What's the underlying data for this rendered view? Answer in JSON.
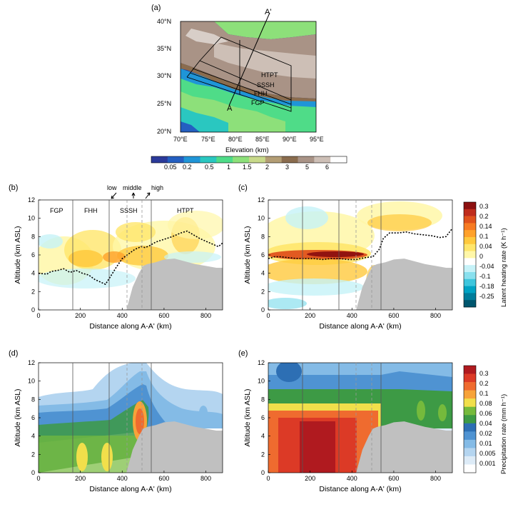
{
  "colors": {
    "gray_terrain": "#c0c0c0",
    "latent": [
      "#00566e",
      "#007d9b",
      "#00a3c4",
      "#3ec6dd",
      "#89e0ee",
      "#c6f2f8",
      "#ffffff",
      "#fff7a8",
      "#ffe66b",
      "#ffc93d",
      "#ffa12a",
      "#f77b22",
      "#e0521c",
      "#bf2c1c",
      "#8c1010"
    ],
    "precip": [
      "#ffffff",
      "#ddebf7",
      "#b4d5f0",
      "#84bbe6",
      "#4f93d2",
      "#2d6fb4",
      "#3d9a45",
      "#75ba3c",
      "#f1df4b",
      "#f7a33a",
      "#ef6b2f",
      "#dc3a26",
      "#b01a1f"
    ],
    "elev": [
      "#2b3a9a",
      "#245fc1",
      "#1f95d7",
      "#2ac7c0",
      "#4fdc88",
      "#8de07a",
      "#c8d98a",
      "#b39d74",
      "#8a6c4e",
      "#a99386",
      "#cdbfb6",
      "#ffffff"
    ]
  },
  "map_panel": {
    "label": "(a)",
    "aprime_label": "A'",
    "a_label": "A",
    "regions": [
      "HTPT",
      "SSSH",
      "FHH",
      "FGP"
    ],
    "lat_ticks": [
      "40°N",
      "35°N",
      "30°N",
      "25°N",
      "20°N"
    ],
    "lon_ticks": [
      "70°E",
      "75°E",
      "80°E",
      "85°E",
      "90°E",
      "95°E"
    ],
    "colorbar_title": "Elevation (km)",
    "colorbar_labels": [
      "0.05",
      "0.2",
      "0.5",
      "1",
      "1.5",
      "2",
      "3",
      "5",
      "6"
    ]
  },
  "cross_panels": {
    "b": {
      "label": "(b)"
    },
    "c": {
      "label": "(c)"
    },
    "d": {
      "label": "(d)"
    },
    "e": {
      "label": "(e)"
    },
    "xlabel": "Distance along A-A' (km)",
    "ylabel": "Altitude (km ASL)",
    "x_ticks": [
      "0",
      "200",
      "400",
      "600",
      "800"
    ],
    "y_ticks": [
      "0",
      "2",
      "4",
      "6",
      "8",
      "10",
      "12"
    ],
    "region_labels": [
      "FGP",
      "FHH",
      "SSSH",
      "HTPT"
    ],
    "elev_arrows": [
      "low",
      "middle",
      "high"
    ]
  },
  "colorbars": {
    "latent": {
      "title": "Latent heating rate  (K h⁻¹)",
      "labels": [
        "0.3",
        "0.2",
        "0.14",
        "0.1",
        "0.04",
        "0",
        "-0.04",
        "-0.1",
        "-0.18",
        "-0.25"
      ]
    },
    "precip": {
      "title": "Precipitation rate  (mm h⁻¹)",
      "labels": [
        "0.3",
        "0.2",
        "0.1",
        "0.08",
        "0.06",
        "0.04",
        "0.02",
        "0.01",
        "0.005",
        "0.001"
      ]
    }
  },
  "chart_data": [
    {
      "panel": "(b)",
      "type": "line",
      "xlabel": "Distance along A-A' (km)",
      "ylabel": "Altitude (km ASL)",
      "xlim": [
        0,
        880
      ],
      "ylim": [
        0,
        12
      ],
      "region_boundaries_km": [
        165,
        335,
        540
      ],
      "elevation_boundaries_km": [
        420,
        495
      ],
      "heating_centroid_line": {
        "x": [
          0,
          40,
          60,
          90,
          120,
          150,
          180,
          210,
          240,
          270,
          300,
          320,
          340,
          370,
          400,
          430,
          460,
          490,
          510,
          530,
          560,
          600,
          640,
          680,
          710,
          740,
          770,
          800,
          830,
          860,
          880
        ],
        "y": [
          4.0,
          3.9,
          4.2,
          4.3,
          4.5,
          4.1,
          4.3,
          4.0,
          3.8,
          3.3,
          3.0,
          2.8,
          3.5,
          4.6,
          5.6,
          6.1,
          6.6,
          6.9,
          6.8,
          7.0,
          7.4,
          7.7,
          8.0,
          8.4,
          8.6,
          8.2,
          7.8,
          7.5,
          7.2,
          6.9,
          7.3
        ]
      },
      "terrain_surface": {
        "x": [
          0,
          420,
          450,
          480,
          500,
          520,
          560,
          600,
          650,
          700,
          750,
          800,
          850,
          880
        ],
        "y": [
          0,
          0,
          2.5,
          4.0,
          4.8,
          5.0,
          5.2,
          5.5,
          5.6,
          5.3,
          5.0,
          4.8,
          4.6,
          4.6
        ]
      }
    },
    {
      "panel": "(c)",
      "type": "line",
      "xlabel": "Distance along A-A' (km)",
      "ylabel": "Altitude (km ASL)",
      "xlim": [
        0,
        880
      ],
      "ylim": [
        0,
        12
      ],
      "region_boundaries_km": [
        165,
        335,
        540
      ],
      "elevation_boundaries_km": [
        420,
        495
      ],
      "heating_centroid_line": {
        "x": [
          0,
          30,
          60,
          100,
          140,
          180,
          220,
          260,
          300,
          340,
          380,
          420,
          460,
          500,
          530,
          550,
          580,
          620,
          660,
          700,
          740,
          780,
          820,
          850,
          880
        ],
        "y": [
          5.6,
          5.8,
          5.8,
          5.7,
          5.6,
          5.6,
          5.6,
          5.5,
          5.6,
          5.6,
          5.5,
          5.5,
          5.7,
          5.8,
          6.6,
          7.8,
          8.4,
          8.4,
          8.5,
          8.3,
          8.2,
          8.1,
          7.9,
          8.0,
          8.9
        ]
      },
      "terrain_surface": {
        "x": [
          0,
          420,
          450,
          480,
          500,
          520,
          560,
          600,
          650,
          700,
          750,
          800,
          850,
          880
        ],
        "y": [
          0,
          0,
          2.5,
          4.0,
          4.8,
          5.0,
          5.2,
          5.5,
          5.6,
          5.3,
          5.0,
          4.8,
          4.6,
          4.6
        ]
      }
    },
    {
      "panel": "(d)",
      "type": "heatmap",
      "xlabel": "Distance along A-A' (km)",
      "ylabel": "Altitude (km ASL)",
      "xlim": [
        0,
        880
      ],
      "ylim": [
        0,
        12
      ],
      "region_boundaries_km": [
        165,
        335,
        540
      ],
      "elevation_boundaries_km": [
        420,
        495
      ]
    },
    {
      "panel": "(e)",
      "type": "heatmap",
      "xlabel": "Distance along A-A' (km)",
      "ylabel": "Altitude (km ASL)",
      "xlim": [
        0,
        880
      ],
      "ylim": [
        0,
        12
      ],
      "region_boundaries_km": [
        165,
        335,
        540
      ],
      "elevation_boundaries_km": [
        420,
        495
      ]
    }
  ]
}
